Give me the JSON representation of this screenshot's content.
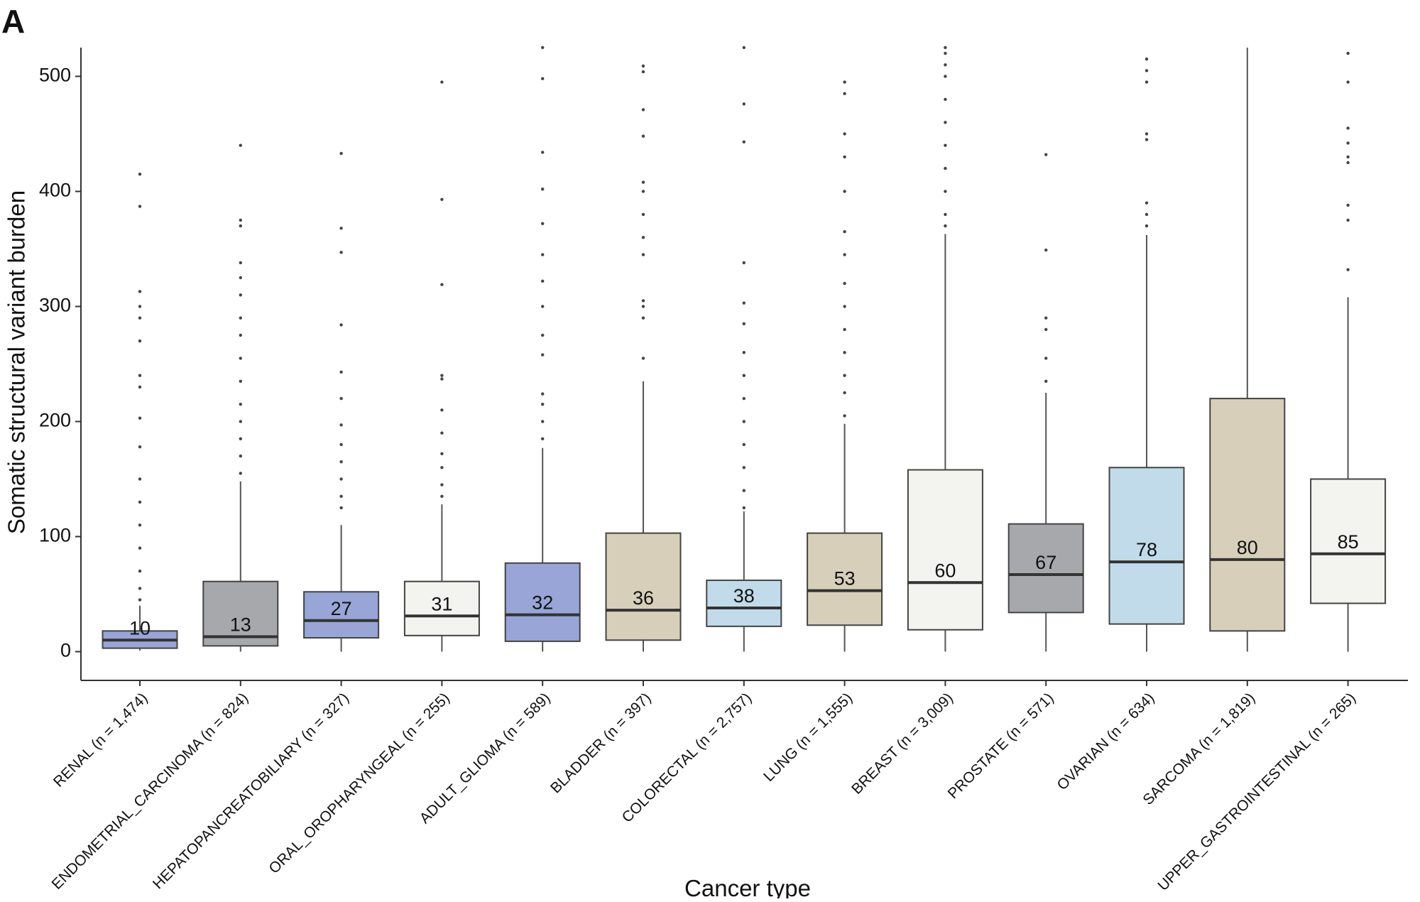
{
  "panel_label": "A",
  "chart_data": {
    "type": "box",
    "ylabel": "Somatic structural variant burden",
    "xlabel": "Cancer type",
    "categories": [
      "RENAL (n = 1,474)",
      "ENDOMETRIAL_CARCINOMA (n = 824)",
      "HEPATOPANCREATOBILIARY (n = 327)",
      "ORAL_OROPHARYNGEAL (n = 255)",
      "ADULT_GLIOMA (n = 589)",
      "BLADDER (n = 397)",
      "COLORECTAL (n = 2,757)",
      "LUNG (n = 1,555)",
      "BREAST (n = 3,009)",
      "PROSTATE (n = 571)",
      "OVARIAN (n = 634)",
      "SARCOMA (n = 1,819)",
      "UPPER_GASTROINTESTINAL (n = 265)"
    ],
    "colors": [
      "#98a5d6",
      "#a6a8ab",
      "#98a5d6",
      "#f3f3ef",
      "#98a5d6",
      "#d7cfb9",
      "#c2dbea",
      "#d7cfb9",
      "#f3f3ef",
      "#a6a8ab",
      "#c2dbea",
      "#d7cfb9",
      "#f3f3ef"
    ],
    "boxes": [
      {
        "whisker_low": 1,
        "q1": 3,
        "median": 10,
        "q3": 18,
        "whisker_high": 40,
        "outliers": [
          45,
          55,
          70,
          90,
          110,
          130,
          150,
          178,
          203,
          230,
          240,
          270,
          290,
          300,
          313,
          387,
          415
        ]
      },
      {
        "whisker_low": 0,
        "q1": 5,
        "median": 13,
        "q3": 61,
        "whisker_high": 148,
        "outliers": [
          155,
          170,
          185,
          200,
          215,
          235,
          255,
          275,
          290,
          310,
          325,
          338,
          370,
          375,
          440
        ]
      },
      {
        "whisker_low": 0,
        "q1": 12,
        "median": 27,
        "q3": 52,
        "whisker_high": 110,
        "outliers": [
          125,
          135,
          150,
          165,
          180,
          197,
          220,
          243,
          284,
          347,
          368,
          433
        ]
      },
      {
        "whisker_low": 0,
        "q1": 14,
        "median": 31,
        "q3": 61,
        "whisker_high": 128,
        "outliers": [
          135,
          145,
          160,
          172,
          190,
          210,
          237,
          240,
          319,
          393,
          495
        ]
      },
      {
        "whisker_low": 0,
        "q1": 9,
        "median": 32,
        "q3": 77,
        "whisker_high": 177,
        "outliers": [
          185,
          200,
          215,
          224,
          258,
          275,
          300,
          322,
          345,
          372,
          402,
          434,
          498,
          525
        ]
      },
      {
        "whisker_low": 0,
        "q1": 10,
        "median": 36,
        "q3": 103,
        "whisker_high": 235,
        "outliers": [
          255,
          290,
          300,
          305,
          345,
          360,
          380,
          400,
          408,
          448,
          471,
          504,
          509
        ]
      },
      {
        "whisker_low": 0,
        "q1": 22,
        "median": 38,
        "q3": 62,
        "whisker_high": 122,
        "outliers": [
          125,
          140,
          160,
          180,
          200,
          220,
          240,
          260,
          285,
          303,
          338,
          443,
          476,
          525
        ]
      },
      {
        "whisker_low": 0,
        "q1": 23,
        "median": 53,
        "q3": 103,
        "whisker_high": 198,
        "outliers": [
          205,
          225,
          240,
          260,
          280,
          300,
          320,
          345,
          365,
          400,
          430,
          450,
          485,
          495
        ]
      },
      {
        "whisker_low": 0,
        "q1": 19,
        "median": 60,
        "q3": 158,
        "whisker_high": 363,
        "outliers": [
          370,
          380,
          400,
          420,
          440,
          460,
          480,
          500,
          510,
          520,
          525
        ]
      },
      {
        "whisker_low": 0,
        "q1": 34,
        "median": 67,
        "q3": 111,
        "whisker_high": 225,
        "outliers": [
          235,
          255,
          280,
          290,
          349,
          432
        ]
      },
      {
        "whisker_low": 0,
        "q1": 24,
        "median": 78,
        "q3": 160,
        "whisker_high": 362,
        "outliers": [
          370,
          380,
          390,
          445,
          450,
          495,
          505,
          515
        ]
      },
      {
        "whisker_low": 0,
        "q1": 18,
        "median": 80,
        "q3": 220,
        "whisker_high": 525,
        "outliers": []
      },
      {
        "whisker_low": 0,
        "q1": 42,
        "median": 85,
        "q3": 150,
        "whisker_high": 308,
        "outliers": [
          332,
          375,
          388,
          425,
          430,
          442,
          455,
          495,
          520
        ]
      }
    ],
    "ylim": [
      -25,
      525
    ],
    "yticks": [
      0,
      100,
      200,
      300,
      400,
      500
    ]
  }
}
